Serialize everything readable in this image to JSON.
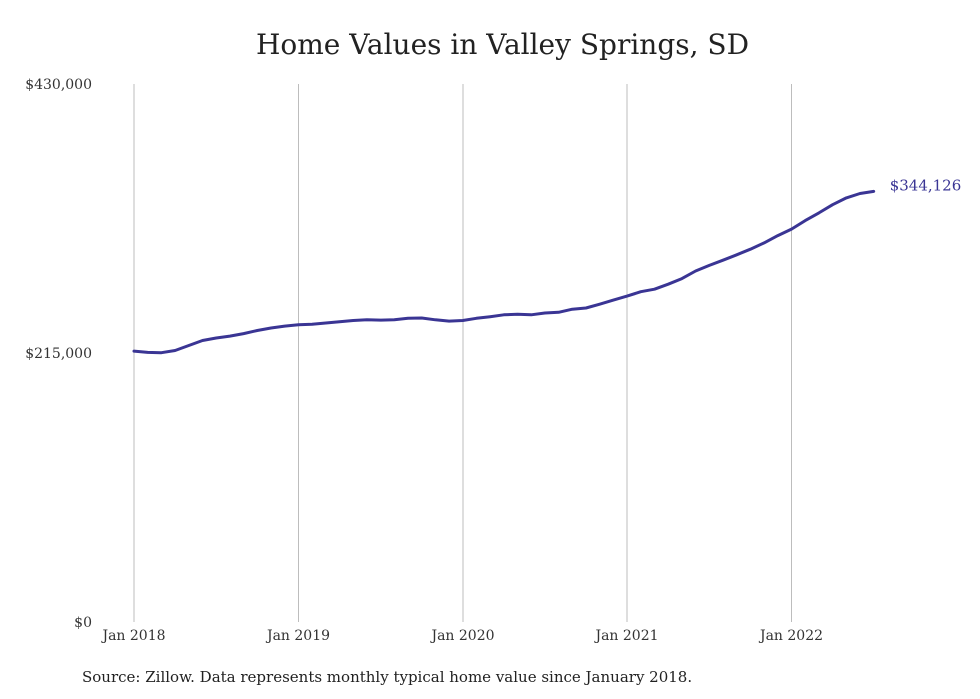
{
  "chart_data": {
    "type": "line",
    "title": "Home Values in Valley Springs, SD",
    "xlabel": "",
    "ylabel": "",
    "ylim": [
      0,
      430000
    ],
    "y_ticks": [
      {
        "value": 0,
        "label": "$0"
      },
      {
        "value": 215000,
        "label": "$215,000"
      },
      {
        "value": 430000,
        "label": "$430,000"
      }
    ],
    "x_ticks": [
      "Jan 2018",
      "Jan 2019",
      "Jan 2020",
      "Jan 2021",
      "Jan 2022"
    ],
    "grid": "vertical",
    "end_label": "$344,126",
    "series": [
      {
        "color": "#3a3594",
        "x": [
          "2018-01",
          "2018-02",
          "2018-03",
          "2018-04",
          "2018-05",
          "2018-06",
          "2018-07",
          "2018-08",
          "2018-09",
          "2018-10",
          "2018-11",
          "2018-12",
          "2019-01",
          "2019-02",
          "2019-03",
          "2019-04",
          "2019-05",
          "2019-06",
          "2019-07",
          "2019-08",
          "2019-09",
          "2019-10",
          "2019-11",
          "2019-12",
          "2020-01",
          "2020-02",
          "2020-03",
          "2020-04",
          "2020-05",
          "2020-06",
          "2020-07",
          "2020-08",
          "2020-09",
          "2020-10",
          "2020-11",
          "2020-12",
          "2021-01",
          "2021-02",
          "2021-03",
          "2021-04",
          "2021-05",
          "2021-06",
          "2021-07",
          "2021-08",
          "2021-09",
          "2021-10",
          "2021-11",
          "2021-12",
          "2022-01",
          "2022-02",
          "2022-03",
          "2022-04",
          "2022-05",
          "2022-06",
          "2022-07"
        ],
        "values": [
          216500,
          215500,
          215200,
          217000,
          221000,
          225000,
          227000,
          228500,
          230500,
          233000,
          235000,
          236500,
          237500,
          238000,
          239000,
          240000,
          241000,
          241500,
          241300,
          241500,
          242700,
          243000,
          241500,
          240500,
          241000,
          242700,
          244000,
          245500,
          246000,
          245500,
          247000,
          247500,
          250000,
          251000,
          254000,
          257300,
          260500,
          264000,
          266000,
          270000,
          274500,
          280500,
          285000,
          289200,
          293500,
          298000,
          303000,
          308800,
          314000,
          320800,
          327000,
          333500,
          339000,
          342500,
          344126
        ]
      }
    ]
  },
  "source_note": "Source: Zillow. Data represents monthly typical home value since January 2018."
}
